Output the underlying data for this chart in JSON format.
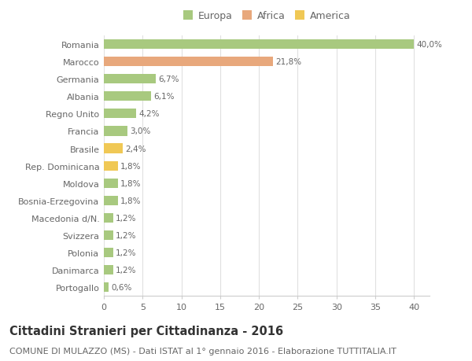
{
  "categories": [
    "Romania",
    "Marocco",
    "Germania",
    "Albania",
    "Regno Unito",
    "Francia",
    "Brasile",
    "Rep. Dominicana",
    "Moldova",
    "Bosnia-Erzegovina",
    "Macedonia d/N.",
    "Svizzera",
    "Polonia",
    "Danimarca",
    "Portogallo"
  ],
  "values": [
    40.0,
    21.8,
    6.7,
    6.1,
    4.2,
    3.0,
    2.4,
    1.8,
    1.8,
    1.8,
    1.2,
    1.2,
    1.2,
    1.2,
    0.6
  ],
  "labels": [
    "40,0%",
    "21,8%",
    "6,7%",
    "6,1%",
    "4,2%",
    "3,0%",
    "2,4%",
    "1,8%",
    "1,8%",
    "1,8%",
    "1,2%",
    "1,2%",
    "1,2%",
    "1,2%",
    "0,6%"
  ],
  "colors": [
    "#a8c97f",
    "#e8a87c",
    "#a8c97f",
    "#a8c97f",
    "#a8c97f",
    "#a8c97f",
    "#f0c855",
    "#f0c855",
    "#a8c97f",
    "#a8c97f",
    "#a8c97f",
    "#a8c97f",
    "#a8c97f",
    "#a8c97f",
    "#a8c97f"
  ],
  "legend_labels": [
    "Europa",
    "Africa",
    "America"
  ],
  "legend_colors": [
    "#a8c97f",
    "#e8a87c",
    "#f0c855"
  ],
  "xlim": [
    0,
    42
  ],
  "xticks": [
    0,
    5,
    10,
    15,
    20,
    25,
    30,
    35,
    40
  ],
  "title": "Cittadini Stranieri per Cittadinanza - 2016",
  "subtitle": "COMUNE DI MULAZZO (MS) - Dati ISTAT al 1° gennaio 2016 - Elaborazione TUTTITALIA.IT",
  "background_color": "#ffffff",
  "bar_height": 0.55,
  "title_fontsize": 10.5,
  "subtitle_fontsize": 8,
  "label_fontsize": 7.5,
  "tick_fontsize": 8,
  "legend_fontsize": 9
}
